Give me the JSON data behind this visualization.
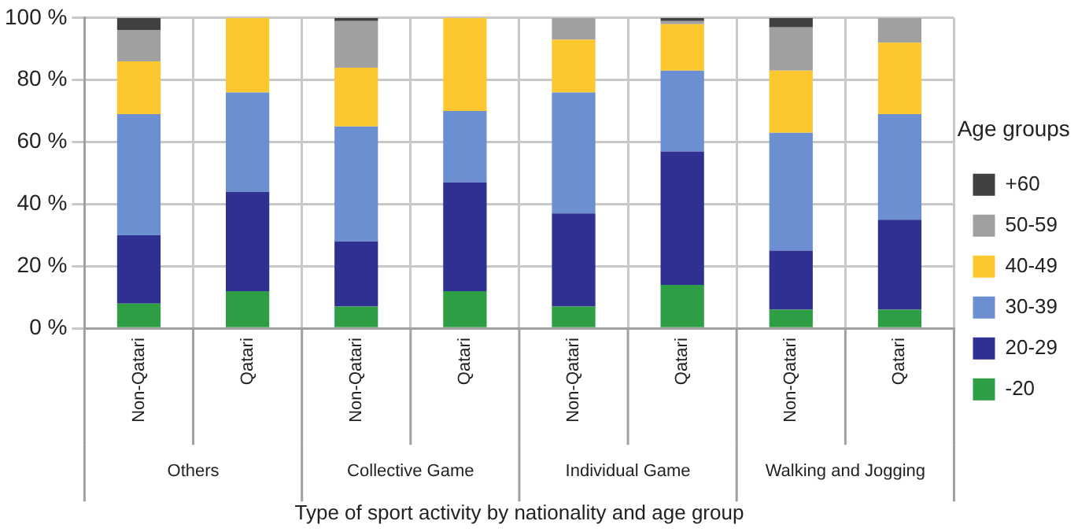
{
  "chart_data": {
    "type": "bar",
    "stacked": true,
    "xlabel": "Type of sport activity by nationality and age group",
    "legend_title": "Age groups",
    "legend": "right",
    "grid": true,
    "categories": [
      "Non-Qatari",
      "Qatari",
      "Non-Qatari",
      "Qatari",
      "Non-Qatari",
      "Qatari",
      "Non-Qatari",
      "Qatari"
    ],
    "annotations": [
      "Others",
      "Collective Game",
      "Individual Game",
      "Walking and Jogging"
    ],
    "ylim": [
      0,
      100
    ],
    "yticks": [
      {
        "value": 0,
        "label": "0 %"
      },
      {
        "value": 20,
        "label": "20 %"
      },
      {
        "value": 40,
        "label": "40 %"
      },
      {
        "value": 60,
        "label": "60 %"
      },
      {
        "value": 80,
        "label": "80 %"
      },
      {
        "value": 100,
        "label": "100 %"
      }
    ],
    "series": [
      {
        "name": "-20",
        "color": "#2e9e44",
        "values": [
          8,
          12,
          7,
          12,
          7,
          14,
          6,
          6
        ]
      },
      {
        "name": "20-29",
        "color": "#2e3192",
        "values": [
          22,
          32,
          21,
          35,
          30,
          43,
          19,
          29
        ]
      },
      {
        "name": "30-39",
        "color": "#6b8fd0",
        "values": [
          39,
          32,
          37,
          23,
          39,
          26,
          38,
          34
        ]
      },
      {
        "name": "40-49",
        "color": "#fdc82f",
        "values": [
          17,
          24,
          19,
          30,
          17,
          15,
          20,
          23
        ]
      },
      {
        "name": "50-59",
        "color": "#a0a0a0",
        "values": [
          10,
          0,
          15,
          0,
          7,
          1,
          14,
          8
        ]
      },
      {
        "name": "+60",
        "color": "#404040",
        "values": [
          4,
          0,
          1,
          0,
          0,
          1,
          3,
          0
        ]
      }
    ]
  }
}
